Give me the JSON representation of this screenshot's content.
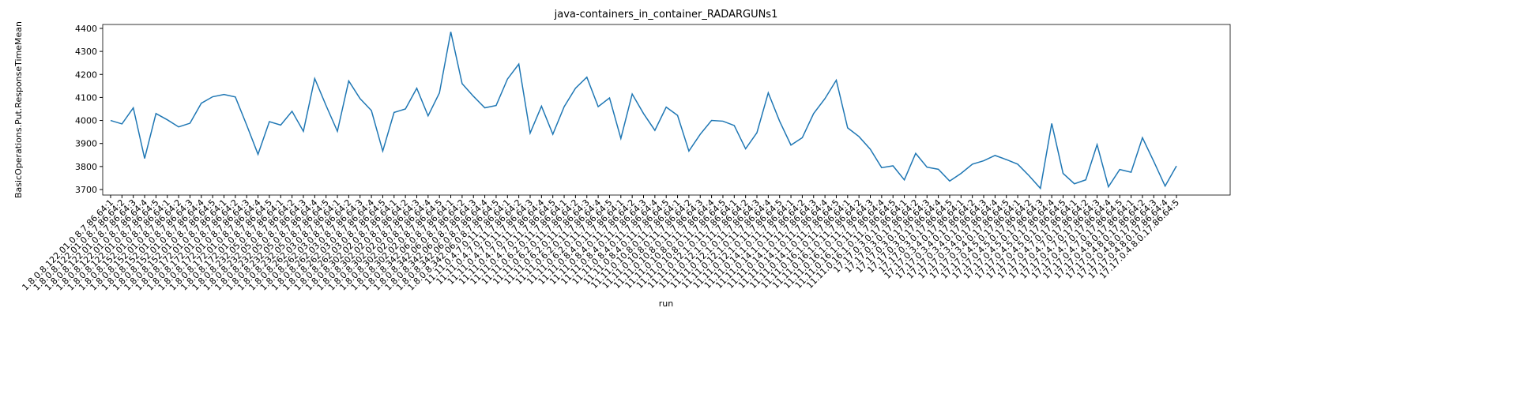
{
  "chart_data": {
    "type": "line",
    "title": "java-containers_in_container_RADARGUNs1",
    "x_label": "run",
    "y_label": "BasicOperations.Put.ResponseTimeMean",
    "categories": [
      "1.8.0.8.122.01.0.8.7.86.64:1",
      "1.8.0.8.122.01.0.8.7.86.64:2",
      "1.8.0.8.122.01.0.8.7.86.64:3",
      "1.8.0.8.122.01.0.8.7.86.64:4",
      "1.8.0.8.122.01.0.8.7.86.64:5",
      "1.8.0.8.152.01.0.8.7.86.64:1",
      "1.8.0.8.152.01.0.8.7.86.64:2",
      "1.8.0.8.152.01.0.8.7.86.64:3",
      "1.8.0.8.152.01.0.8.7.86.64:4",
      "1.8.0.8.152.01.0.8.7.86.64:5",
      "1.8.0.8.172.01.0.8.7.86.64:1",
      "1.8.0.8.172.01.0.8.7.86.64:2",
      "1.8.0.8.172.01.0.8.7.86.64:3",
      "1.8.0.8.172.01.0.8.7.86.64:4",
      "1.8.0.8.172.01.0.8.7.86.64:5",
      "1.8.0.8.232.05.0.8.7.86.64:1",
      "1.8.0.8.232.05.0.8.7.86.64:2",
      "1.8.0.8.232.05.0.8.7.86.64:3",
      "1.8.0.8.232.05.0.8.7.86.64:4",
      "1.8.0.8.232.05.0.8.7.86.64:5",
      "1.8.0.8.262.03.0.8.7.86.64:1",
      "1.8.0.8.262.03.0.8.7.86.64:2",
      "1.8.0.8.262.03.0.8.7.86.64:3",
      "1.8.0.8.262.03.0.8.7.86.64:4",
      "1.8.0.8.262.03.0.8.7.86.64:5",
      "1.8.0.8.302.02.0.8.7.86.64:1",
      "1.8.0.8.302.02.0.8.7.86.64:2",
      "1.8.0.8.302.02.0.8.7.86.64:3",
      "1.8.0.8.302.02.0.8.7.86.64:4",
      "1.8.0.8.302.02.0.8.7.86.64:5",
      "1.8.0.8.342.06.0.8.7.86.64:1",
      "1.8.0.8.342.06.0.8.7.86.64:2",
      "1.8.0.8.342.06.0.8.7.86.64:3",
      "1.8.0.8.342.06.0.8.7.86.64:4",
      "1.8.0.8.342.06.0.8.7.86.64:5",
      "11.11.0.4.7.0.11.7.86.64:1",
      "11.11.0.4.7.0.11.7.86.64:2",
      "11.11.0.4.7.0.11.7.86.64:3",
      "11.11.0.4.7.0.11.7.86.64:4",
      "11.11.0.4.7.0.11.7.86.64:5",
      "11.11.0.6.2.0.11.7.86.64:1",
      "11.11.0.6.2.0.11.7.86.64:2",
      "11.11.0.6.2.0.11.7.86.64:3",
      "11.11.0.6.2.0.11.7.86.64:4",
      "11.11.0.6.2.0.11.7.86.64:5",
      "11.11.0.8.4.0.11.7.86.64:1",
      "11.11.0.8.4.0.11.7.86.64:2",
      "11.11.0.8.4.0.11.7.86.64:3",
      "11.11.0.8.4.0.11.7.86.64:4",
      "11.11.0.8.4.0.11.7.86.64:5",
      "11.11.0.10.8.0.11.7.86.64:1",
      "11.11.0.10.8.0.11.7.86.64:2",
      "11.11.0.10.8.0.11.7.86.64:3",
      "11.11.0.10.8.0.11.7.86.64:4",
      "11.11.0.10.8.0.11.7.86.64:5",
      "11.11.0.12.1.0.11.7.86.64:1",
      "11.11.0.12.1.0.11.7.86.64:2",
      "11.11.0.12.1.0.11.7.86.64:3",
      "11.11.0.12.1.0.11.7.86.64:4",
      "11.11.0.12.1.0.11.7.86.64:5",
      "11.11.0.14.1.0.11.7.86.64:1",
      "11.11.0.14.1.0.11.7.86.64:2",
      "11.11.0.14.1.0.11.7.86.64:3",
      "11.11.0.14.1.0.11.7.86.64:4",
      "11.11.0.14.1.0.11.7.86.64:5",
      "11.11.0.16.1.0.11.7.86.64:1",
      "11.11.0.16.1.0.11.7.86.64:2",
      "11.11.0.16.1.0.11.7.86.64:3",
      "11.11.0.16.1.0.11.7.86.64:4",
      "11.11.0.16.1.0.11.7.86.64:5",
      "17.17.0.3.0.17.86.64:1",
      "17.17.0.3.0.17.86.64:2",
      "17.17.0.3.0.17.86.64:3",
      "17.17.0.3.0.17.86.64:4",
      "17.17.0.3.0.17.86.64:5",
      "17.17.0.3.4.0.17.86.64:1",
      "17.17.0.3.4.0.17.86.64:2",
      "17.17.0.3.4.0.17.86.64:3",
      "17.17.0.3.4.0.17.86.64:4",
      "17.17.0.3.4.0.17.86.64:5",
      "17.17.0.4.5.0.17.86.64:1",
      "17.17.0.4.5.0.17.86.64:2",
      "17.17.0.4.5.0.17.86.64:3",
      "17.17.0.4.5.0.17.86.64:4",
      "17.17.0.4.5.0.17.86.64:5",
      "17.17.0.4.7.0.17.86.64:1",
      "17.17.0.4.7.0.17.86.64:2",
      "17.17.0.4.7.0.17.86.64:3",
      "17.17.0.4.7.0.17.86.64:4",
      "17.17.0.4.7.0.17.86.64:5",
      "17.17.0.4.8.0.17.86.64:1",
      "17.17.0.4.8.0.17.86.64:2",
      "17.17.0.4.8.0.17.86.64:3",
      "17.17.0.4.8.0.17.86.64:4",
      "17.17.0.4.8.0.17.86.64:5"
    ],
    "series": [
      {
        "name": "BasicOperations.Put.ResponseTimeMean",
        "color": "#1f77b4",
        "values": [
          4000,
          3985,
          4055,
          3835,
          4030,
          4003,
          3972,
          3988,
          4075,
          4103,
          4113,
          4102,
          3980,
          3853,
          3995,
          3980,
          4040,
          3953,
          4182,
          4065,
          3953,
          4172,
          4095,
          4043,
          3867,
          4035,
          4050,
          4140,
          4020,
          4120,
          4385,
          4160,
          4105,
          4055,
          4065,
          4180,
          4245,
          3945,
          4062,
          3940,
          4060,
          4140,
          4188,
          4060,
          4098,
          3922,
          4115,
          4030,
          3957,
          4058,
          4022,
          3867,
          3940,
          4000,
          3997,
          3978,
          3877,
          3947,
          4120,
          3997,
          3893,
          3925,
          4030,
          4095,
          4175,
          3968,
          3930,
          3875,
          3795,
          3803,
          3742,
          3857,
          3797,
          3788,
          3737,
          3770,
          3810,
          3825,
          3848,
          3830,
          3810,
          3760,
          3705,
          3987,
          3770,
          3725,
          3742,
          3895,
          3712,
          3787,
          3775,
          3925,
          3822,
          3715,
          3802
        ]
      }
    ],
    "ylim": [
      3676,
      4417
    ],
    "yticks": [
      3700,
      3800,
      3900,
      4000,
      4100,
      4200,
      4300,
      4400
    ]
  }
}
